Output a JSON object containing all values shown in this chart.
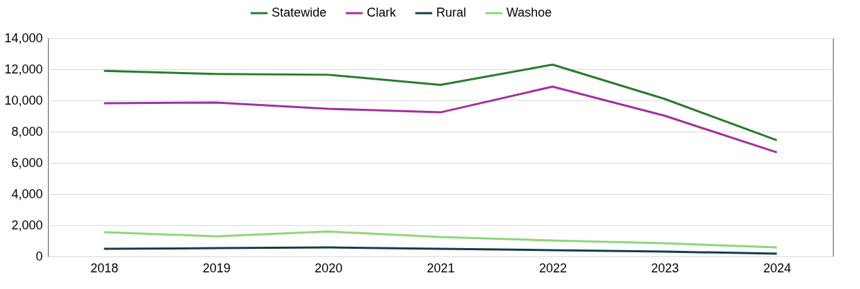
{
  "chart_data": {
    "type": "line",
    "categories": [
      "2018",
      "2019",
      "2020",
      "2021",
      "2022",
      "2023",
      "2024"
    ],
    "series": [
      {
        "name": "Statewide",
        "color": "#2a7a2e",
        "values": [
          11900,
          11700,
          11650,
          11000,
          12300,
          10100,
          7450
        ]
      },
      {
        "name": "Clark",
        "color": "#a4309c",
        "values": [
          9820,
          9870,
          9470,
          9240,
          10890,
          9020,
          6670
        ]
      },
      {
        "name": "Rural",
        "color": "#133d4c",
        "values": [
          490,
          530,
          580,
          490,
          400,
          310,
          180
        ]
      },
      {
        "name": "Washoe",
        "color": "#8fd67a",
        "values": [
          1560,
          1290,
          1600,
          1240,
          1020,
          840,
          580
        ]
      }
    ],
    "ylim": [
      0,
      14000
    ],
    "yticks": [
      0,
      {
        "value": 2000,
        "label": "2,000"
      },
      {
        "value": 4000,
        "label": "4,000"
      },
      {
        "value": 6000,
        "label": "6,000"
      },
      {
        "value": 8000,
        "label": "8,000"
      },
      {
        "value": 10000,
        "label": "10,000"
      },
      {
        "value": 12000,
        "label": "12,000"
      },
      {
        "value": 14000,
        "label": "14,000"
      }
    ],
    "grid": "y",
    "legend": "top"
  }
}
